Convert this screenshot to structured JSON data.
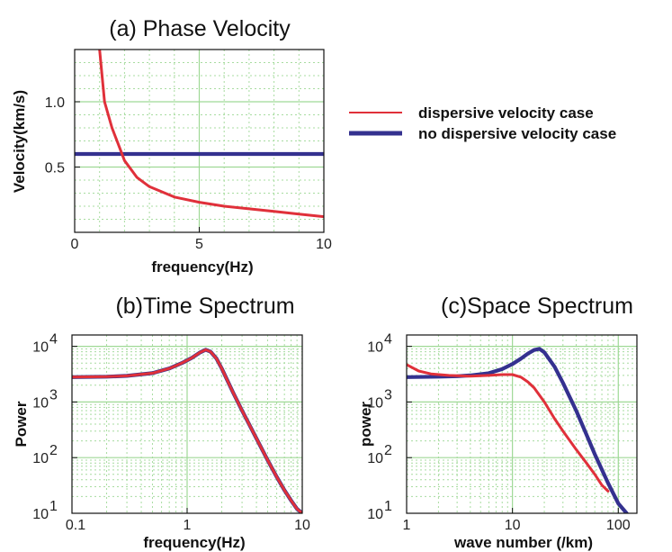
{
  "legend": {
    "position": "top-right",
    "entries": [
      {
        "label": "dispersive velocity case",
        "color": "#e0303a"
      },
      {
        "label": "no dispersive velocity case",
        "color": "#34318f"
      }
    ]
  },
  "chart_data": [
    {
      "type": "line",
      "title": "(a) Phase Velocity",
      "xlabel": "frequency(Hz)",
      "ylabel": "Velocity(km/s)",
      "xlim": [
        0,
        10
      ],
      "ylim": [
        0,
        1.4
      ],
      "xticks": [
        0,
        5,
        10
      ],
      "xtick_labels": [
        "0",
        "5",
        "10"
      ],
      "yticks": [
        0.5,
        1.0
      ],
      "ytick_labels": [
        "0.5",
        "1.0"
      ],
      "grid": true,
      "series": [
        {
          "name": "dispersive velocity case",
          "color": "#e0303a",
          "x": [
            1.0,
            1.2,
            1.5,
            1.8,
            2.0,
            2.5,
            3,
            4,
            5,
            6,
            7,
            8,
            9,
            10
          ],
          "y": [
            1.4,
            1.0,
            0.8,
            0.65,
            0.55,
            0.42,
            0.35,
            0.27,
            0.23,
            0.2,
            0.18,
            0.16,
            0.14,
            0.12
          ]
        },
        {
          "name": "no dispersive velocity case",
          "color": "#34318f",
          "x": [
            0,
            10
          ],
          "y": [
            0.6,
            0.6
          ]
        }
      ]
    },
    {
      "type": "line",
      "title": "(b)Time Spectrum",
      "xlabel": "frequency(Hz)",
      "ylabel": "Power",
      "xscale": "log",
      "yscale": "log",
      "xlim": [
        0.1,
        10
      ],
      "ylim": [
        10,
        16000
      ],
      "xticks": [
        0.1,
        1,
        10
      ],
      "xtick_labels": [
        "0.1",
        "1",
        "10"
      ],
      "yticks": [
        10,
        100,
        1000,
        10000
      ],
      "ytick_base": [
        "10",
        "10",
        "10",
        "10"
      ],
      "ytick_exp": [
        "1",
        "2",
        "3",
        "4"
      ],
      "grid": true,
      "series": [
        {
          "name": "dispersive velocity case",
          "color": "#e0303a",
          "x": [
            0.1,
            0.2,
            0.3,
            0.5,
            0.7,
            0.9,
            1.1,
            1.3,
            1.45,
            1.6,
            1.8,
            2.0,
            2.5,
            3,
            4,
            5,
            6,
            7,
            8,
            9,
            10
          ],
          "y": [
            2800,
            2850,
            2950,
            3300,
            4000,
            5000,
            6200,
            7800,
            8700,
            8000,
            6000,
            4000,
            1500,
            700,
            220,
            90,
            45,
            26,
            17,
            12,
            10
          ]
        },
        {
          "name": "no dispersive velocity case",
          "color": "#34318f",
          "x": [
            0.1,
            0.2,
            0.3,
            0.5,
            0.7,
            0.9,
            1.1,
            1.3,
            1.45,
            1.6,
            1.8,
            2.0,
            2.5,
            3,
            4,
            5,
            6,
            7,
            8,
            9,
            10
          ],
          "y": [
            2800,
            2850,
            2950,
            3300,
            4000,
            5000,
            6200,
            7800,
            8700,
            8000,
            6000,
            4000,
            1500,
            700,
            220,
            90,
            45,
            26,
            17,
            12,
            10
          ]
        }
      ]
    },
    {
      "type": "line",
      "title": "(c)Space Spectrum",
      "xlabel": "wave number (/km)",
      "ylabel": "power",
      "xscale": "log",
      "yscale": "log",
      "xlim": [
        1,
        150
      ],
      "ylim": [
        10,
        16000
      ],
      "xticks": [
        1,
        10,
        100
      ],
      "xtick_labels": [
        "1",
        "10",
        "100"
      ],
      "yticks": [
        10,
        100,
        1000,
        10000
      ],
      "ytick_base": [
        "10",
        "10",
        "10",
        "10"
      ],
      "ytick_exp": [
        "1",
        "2",
        "3",
        "4"
      ],
      "grid": true,
      "series": [
        {
          "name": "dispersive velocity case",
          "color": "#e0303a",
          "x": [
            1,
            1.3,
            1.7,
            2.5,
            4,
            6,
            8,
            10,
            12,
            14,
            16,
            20,
            25,
            30,
            40,
            50,
            60,
            70,
            80
          ],
          "y": [
            4700,
            3600,
            3200,
            3000,
            2900,
            3000,
            3100,
            3100,
            2800,
            2300,
            1800,
            1000,
            500,
            300,
            140,
            80,
            50,
            32,
            25
          ]
        },
        {
          "name": "no dispersive velocity case",
          "color": "#34318f",
          "x": [
            1,
            2,
            3,
            4,
            6,
            8,
            10,
            12,
            14,
            16,
            18,
            20,
            25,
            30,
            40,
            50,
            60,
            80,
            100,
            120
          ],
          "y": [
            2800,
            2850,
            2900,
            3000,
            3300,
            3900,
            4800,
            6000,
            7400,
            8600,
            9000,
            7800,
            4300,
            2200,
            700,
            260,
            115,
            35,
            15,
            10
          ]
        }
      ]
    }
  ]
}
